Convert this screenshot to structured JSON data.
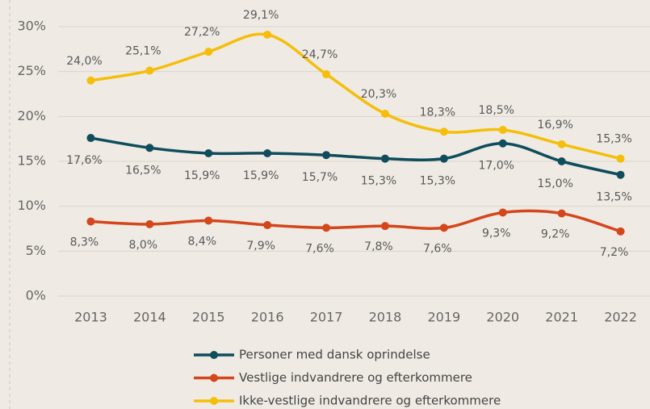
{
  "chart_data": {
    "type": "line",
    "categories": [
      "2013",
      "2014",
      "2015",
      "2016",
      "2017",
      "2018",
      "2019",
      "2020",
      "2021",
      "2022"
    ],
    "ylim": [
      0,
      30
    ],
    "yticks": [
      {
        "value": 0,
        "label": "0%"
      },
      {
        "value": 5,
        "label": "5%"
      },
      {
        "value": 10,
        "label": "10%"
      },
      {
        "value": 15,
        "label": "15%"
      },
      {
        "value": 20,
        "label": "20%"
      },
      {
        "value": 25,
        "label": "25%"
      },
      {
        "value": 30,
        "label": "30%"
      }
    ],
    "grid": true,
    "series": [
      {
        "name": "Personer med dansk oprindelse",
        "color": "#0f4c5c",
        "values": [
          17.6,
          16.5,
          15.9,
          15.9,
          15.7,
          15.3,
          15.3,
          17.0,
          15.0,
          13.5
        ],
        "value_labels": [
          "17,6%",
          "16,5%",
          "15,9%",
          "15,9%",
          "15,7%",
          "15,3%",
          "15,3%",
          "17,0%",
          "15,0%",
          "13,5%"
        ]
      },
      {
        "name": "Vestlige indvandrere og efterkommere",
        "color": "#d4461c",
        "values": [
          8.3,
          8.0,
          8.4,
          7.9,
          7.6,
          7.8,
          7.6,
          9.3,
          9.2,
          7.2
        ],
        "value_labels": [
          "8,3%",
          "8,0%",
          "8,4%",
          "7,9%",
          "7,6%",
          "7,8%",
          "7,6%",
          "9,3%",
          "9,2%",
          "7,2%"
        ]
      },
      {
        "name": "Ikke-vestlige indvandrere og efterkommere",
        "color": "#f5be0b",
        "values": [
          24.0,
          25.1,
          27.2,
          29.1,
          24.7,
          20.3,
          18.3,
          18.5,
          16.9,
          15.3
        ],
        "value_labels": [
          "24,0%",
          "25,1%",
          "27,2%",
          "29,1%",
          "24,7%",
          "20,3%",
          "18,3%",
          "18,5%",
          "16,9%",
          "15,3%"
        ]
      }
    ]
  }
}
